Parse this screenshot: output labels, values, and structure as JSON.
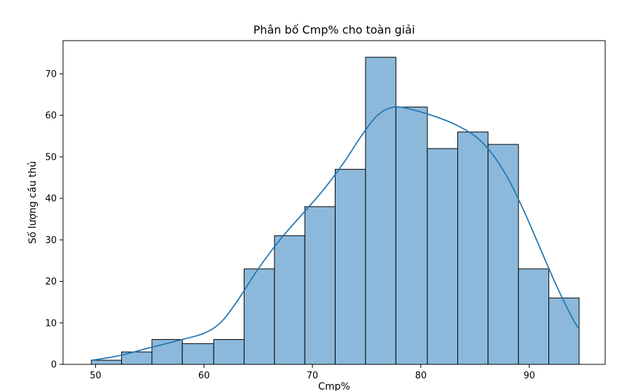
{
  "chart_data": {
    "type": "histogram",
    "title": "Phân bố Cmp% cho toàn giải",
    "xlabel": "Cmp%",
    "ylabel": "Số lượng cầu thủ",
    "xlim": [
      47,
      97
    ],
    "ylim": [
      0,
      78
    ],
    "x_ticks": [
      50,
      60,
      70,
      80,
      90
    ],
    "y_ticks": [
      0,
      10,
      20,
      30,
      40,
      50,
      60,
      70
    ],
    "bins": [
      {
        "start": 49.6,
        "end": 52.4,
        "count": 1
      },
      {
        "start": 52.4,
        "end": 55.2,
        "count": 3
      },
      {
        "start": 55.2,
        "end": 58.0,
        "count": 6
      },
      {
        "start": 58.0,
        "end": 60.9,
        "count": 5
      },
      {
        "start": 60.9,
        "end": 63.7,
        "count": 6
      },
      {
        "start": 63.7,
        "end": 66.5,
        "count": 23
      },
      {
        "start": 66.5,
        "end": 69.3,
        "count": 31
      },
      {
        "start": 69.3,
        "end": 72.1,
        "count": 38
      },
      {
        "start": 72.1,
        "end": 74.9,
        "count": 47
      },
      {
        "start": 74.9,
        "end": 77.7,
        "count": 74
      },
      {
        "start": 77.7,
        "end": 80.6,
        "count": 62
      },
      {
        "start": 80.6,
        "end": 83.4,
        "count": 52
      },
      {
        "start": 83.4,
        "end": 86.2,
        "count": 56
      },
      {
        "start": 86.2,
        "end": 89.0,
        "count": 53
      },
      {
        "start": 89.0,
        "end": 91.8,
        "count": 23
      },
      {
        "start": 91.8,
        "end": 94.6,
        "count": 16
      }
    ],
    "kde": {
      "x": [
        49.6,
        52,
        55,
        58,
        60,
        61.5,
        63,
        65,
        67,
        69,
        71,
        73,
        74.5,
        76,
        77.5,
        79,
        81,
        83,
        85,
        86.5,
        88,
        89.5,
        91,
        92.5,
        94,
        94.6
      ],
      "y": [
        1,
        2,
        4,
        6,
        7.5,
        10,
        15,
        23,
        30,
        36,
        42,
        49,
        55,
        60,
        62,
        61.5,
        60,
        58,
        55,
        51,
        45,
        37,
        28,
        19,
        11,
        8.5
      ]
    },
    "bar_color": "#8cb9db",
    "bar_edge_color": "#000000",
    "line_color": "#2678b2",
    "grid": false,
    "legend": "none"
  }
}
